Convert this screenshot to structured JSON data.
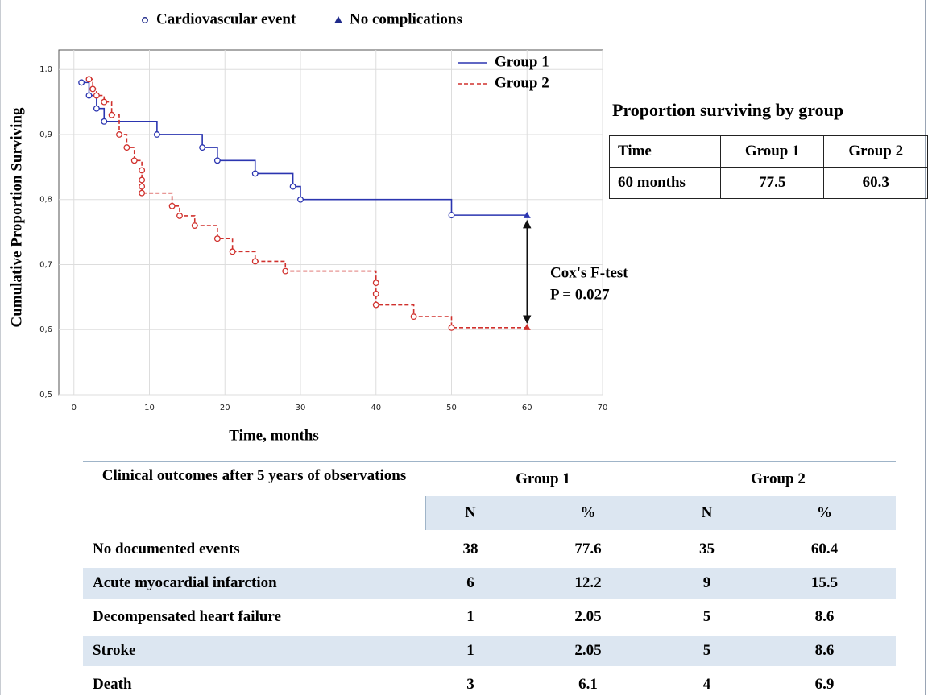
{
  "chart_data": {
    "type": "line",
    "step": true,
    "marker_legend": [
      {
        "label": "Cardiovascular event",
        "marker": "circle"
      },
      {
        "label": "No complications",
        "marker": "triangle"
      }
    ],
    "marker_legend_color": "#1f2a8a",
    "xlabel": "Time, months",
    "ylabel": "Cumulative Proportion Surviving",
    "xlim": [
      -2,
      70
    ],
    "ylim": [
      0.5,
      1.03
    ],
    "xticks": [
      0,
      10,
      20,
      30,
      40,
      50,
      60,
      70
    ],
    "yticks": [
      {
        "value": 0.5,
        "label": "0,5"
      },
      {
        "value": 0.6,
        "label": "0,6"
      },
      {
        "value": 0.7,
        "label": "0,7"
      },
      {
        "value": 0.8,
        "label": "0,8"
      },
      {
        "value": 0.9,
        "label": "0,9"
      },
      {
        "value": 1.0,
        "label": "1,0"
      }
    ],
    "grid": true,
    "legend": "upper right",
    "series": [
      {
        "name": "Group 1",
        "color": "#2b35b0",
        "dashed": false,
        "x": [
          1,
          2,
          3,
          4,
          11,
          17,
          19,
          24,
          29,
          30,
          50,
          60
        ],
        "values": [
          0.98,
          0.96,
          0.94,
          0.92,
          0.9,
          0.88,
          0.86,
          0.84,
          0.82,
          0.8,
          0.776,
          0.775
        ]
      },
      {
        "name": "Group 2",
        "color": "#d0312d",
        "dashed": true,
        "x": [
          2,
          2.5,
          3,
          4,
          5,
          6,
          7,
          8,
          9,
          9,
          9,
          9,
          13,
          14,
          16,
          19,
          21,
          24,
          28,
          40,
          40,
          40,
          45,
          50,
          60
        ],
        "values": [
          0.985,
          0.97,
          0.96,
          0.95,
          0.93,
          0.9,
          0.88,
          0.86,
          0.845,
          0.83,
          0.82,
          0.81,
          0.79,
          0.775,
          0.76,
          0.74,
          0.72,
          0.705,
          0.69,
          0.672,
          0.655,
          0.638,
          0.62,
          0.603,
          0.603
        ]
      }
    ],
    "annotations": [
      "Cox's F-test",
      "P = 0.027"
    ]
  },
  "summary_table": {
    "title": "Proportion surviving by group",
    "header": [
      "Time",
      "Group 1",
      "Group 2"
    ],
    "rows": [
      [
        "60 months",
        77.5,
        60.3
      ]
    ]
  },
  "outcomes_table": {
    "title": "Clinical  outcomes after 5 years of observations",
    "groups": [
      "Group 1",
      "Group 2"
    ],
    "subheaders": [
      "N",
      "%",
      "N",
      "%"
    ],
    "rows": [
      [
        "No documented events",
        38,
        77.6,
        35,
        60.4
      ],
      [
        "Acute myocardial infarction",
        6,
        12.2,
        9,
        15.5
      ],
      [
        "Decompensated heart failure",
        1,
        2.05,
        5,
        8.6
      ],
      [
        "Stroke",
        1,
        2.05,
        5,
        8.6
      ],
      [
        "Death",
        3,
        6.1,
        4,
        6.9
      ]
    ]
  }
}
